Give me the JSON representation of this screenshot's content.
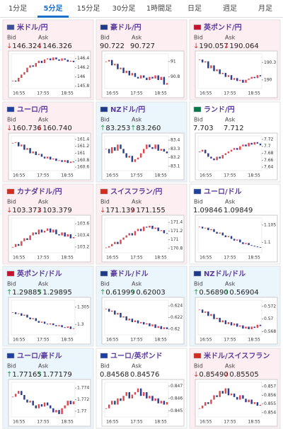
{
  "tabs": [
    "1分足",
    "5分足",
    "15分足",
    "30分足",
    "1時間足",
    "日足",
    "週足",
    "月足"
  ],
  "active_tab": 1,
  "labels": {
    "bid": "Bid",
    "ask": "Ask"
  },
  "xticks": [
    "16:55",
    "17:55",
    "18:55"
  ],
  "panels": [
    {
      "name": "米ドル/円",
      "flag": "#3c4f9a",
      "bg": "#fdeef1",
      "arrow": "↓",
      "arrow_color": "#d33",
      "bid": "146.324",
      "ask": "146.326",
      "chart": {
        "ylim": [
          145.75,
          146.5
        ],
        "yticks": [
          146.4,
          146.2,
          146,
          145.8
        ],
        "closes": [
          145.92,
          145.9,
          145.98,
          146.05,
          146.1,
          146.2,
          146.25,
          146.22,
          146.3,
          146.35,
          146.3,
          146.38,
          146.4,
          146.36,
          146.42,
          146.38,
          146.35,
          146.4,
          146.37,
          146.33,
          146.35,
          146.32
        ]
      }
    },
    {
      "name": "豪ドル/円",
      "flag": "#1f3a8a",
      "bg": "#fdeef1",
      "bid": "90.722",
      "ask": "90.727",
      "chart": {
        "ylim": [
          90.65,
          91.1
        ],
        "yticks": [
          91,
          90.8
        ],
        "closes": [
          91.0,
          91.02,
          90.95,
          90.97,
          90.9,
          90.92,
          90.85,
          90.88,
          90.82,
          90.85,
          90.8,
          90.78,
          90.82,
          90.79,
          90.76,
          90.8,
          90.78,
          90.82,
          90.76,
          90.8,
          90.7,
          90.72
        ]
      }
    },
    {
      "name": "英ポンド/円",
      "flag": "#c8102e",
      "bg": "#fdeef1",
      "arrow": "↓",
      "arrow_color": "#d33",
      "bid": "190.057",
      "ask": "190.064",
      "chart": {
        "ylim": [
          189.85,
          190.45
        ],
        "yticks": [
          190.3,
          190
        ],
        "closes": [
          190.35,
          190.3,
          190.32,
          190.2,
          190.25,
          190.15,
          190.18,
          190.1,
          190.12,
          190.05,
          190.08,
          190.0,
          190.03,
          189.98,
          190.0,
          189.95,
          190.0,
          190.02,
          190.05,
          190.03,
          190.08,
          190.06
        ]
      }
    },
    {
      "name": "ユーロ/円",
      "flag": "#1f3fa0",
      "bg": "#fdeef1",
      "arrow": "↓",
      "arrow_color": "#d33",
      "bid": "160.736",
      "ask": "160.740",
      "chart": {
        "ylim": [
          160.5,
          161.5
        ],
        "yticks": [
          161.4,
          161.2,
          161,
          160.8,
          160.6
        ],
        "closes": [
          161.3,
          161.32,
          161.2,
          161.25,
          161.1,
          161.15,
          161.0,
          161.05,
          160.95,
          160.98,
          160.9,
          160.85,
          160.9,
          160.82,
          160.85,
          160.78,
          160.8,
          160.75,
          160.8,
          160.72,
          160.76,
          160.74
        ]
      }
    },
    {
      "name": "NZドル/円",
      "flag": "#1f3a8a",
      "bg": "#eaf5fc",
      "arrow": "↑",
      "arrow_color": "#2a9d4b",
      "bid": "83.253",
      "ask": "83.260",
      "chart": {
        "ylim": [
          83.05,
          83.45
        ],
        "yticks": [
          83.4,
          83.3,
          83.2,
          83.1
        ],
        "closes": [
          83.3,
          83.25,
          83.32,
          83.28,
          83.35,
          83.3,
          83.25,
          83.2,
          83.22,
          83.15,
          83.18,
          83.2,
          83.25,
          83.3,
          83.35,
          83.32,
          83.3,
          83.35,
          83.28,
          83.3,
          83.27,
          83.25
        ]
      }
    },
    {
      "name": "ランド/円",
      "flag": "#007a4d",
      "bg": "#ffffff",
      "bid": "7.703",
      "ask": "7.712",
      "chart": {
        "ylim": [
          7.63,
          7.73
        ],
        "yticks": [
          7.72,
          7.7,
          7.68,
          7.66,
          7.64
        ],
        "closes": [
          7.685,
          7.69,
          7.68,
          7.67,
          7.665,
          7.66,
          7.67,
          7.665,
          7.675,
          7.68,
          7.685,
          7.69,
          7.695,
          7.69,
          7.7,
          7.705,
          7.7,
          7.71,
          7.705,
          7.712,
          7.708,
          7.703
        ]
      }
    },
    {
      "name": "カナダドル/円",
      "flag": "#d52b1e",
      "bg": "#fdeef1",
      "arrow": "↓",
      "arrow_color": "#d33",
      "bid": "103.373",
      "ask": "103.379",
      "chart": {
        "ylim": [
          103.1,
          103.7
        ],
        "yticks": [
          103.6,
          103.4,
          103.2
        ],
        "closes": [
          103.2,
          103.25,
          103.22,
          103.3,
          103.35,
          103.32,
          103.4,
          103.45,
          103.42,
          103.5,
          103.45,
          103.48,
          103.52,
          103.45,
          103.5,
          103.42,
          103.4,
          103.45,
          103.38,
          103.42,
          103.35,
          103.37
        ]
      }
    },
    {
      "name": "スイスフラン/円",
      "flag": "#d52b1e",
      "bg": "#fdeef1",
      "arrow": "↓",
      "arrow_color": "#d33",
      "bid": "171.139",
      "ask": "171.155",
      "chart": {
        "ylim": [
          170.7,
          171.5
        ],
        "yticks": [
          171.4,
          171.2,
          171,
          170.8
        ],
        "closes": [
          170.82,
          170.85,
          170.9,
          170.95,
          170.9,
          171.0,
          171.05,
          171.1,
          171.15,
          171.1,
          171.2,
          171.25,
          171.2,
          171.3,
          171.28,
          171.32,
          171.25,
          171.28,
          171.2,
          171.22,
          171.15,
          171.14
        ]
      }
    },
    {
      "name": "ユーロ/ドル",
      "flag": "#1f3fa0",
      "bg": "#ffffff",
      "bid": "1.09846",
      "ask": "1.09849",
      "chart": {
        "ylim": [
          1.097,
          1.107
        ],
        "yticks": [
          1.105,
          1.1
        ],
        "closes": [
          1.1045,
          1.104,
          1.1042,
          1.1035,
          1.1038,
          1.103,
          1.1025,
          1.1028,
          1.102,
          1.1015,
          1.1018,
          1.101,
          1.1005,
          1.1008,
          1.1,
          1.0995,
          1.0998,
          1.0992,
          1.099,
          1.0988,
          1.0986,
          1.0985
        ]
      }
    },
    {
      "name": "英ポンド/ドル",
      "flag": "#c8102e",
      "bg": "#eaf5fc",
      "arrow": "↑",
      "arrow_color": "#2a9d4b",
      "bid": "1.29885",
      "ask": "1.29895",
      "chart": {
        "ylim": [
          1.297,
          1.307
        ],
        "yticks": [
          1.305,
          1.3
        ],
        "closes": [
          1.3035,
          1.303,
          1.3032,
          1.3025,
          1.3028,
          1.302,
          1.3015,
          1.3018,
          1.301,
          1.3005,
          1.3008,
          1.3002,
          1.3,
          1.3003,
          1.2998,
          1.2995,
          1.2998,
          1.2992,
          1.299,
          1.2994,
          1.2987,
          1.2989
        ]
      }
    },
    {
      "name": "豪ドル/ドル",
      "flag": "#1f3a8a",
      "bg": "#eaf5fc",
      "arrow": "↑",
      "arrow_color": "#2a9d4b",
      "bid": "0.61999",
      "ask": "0.62003",
      "chart": {
        "ylim": [
          0.619,
          0.625
        ],
        "yticks": [
          0.624,
          0.622,
          0.62
        ],
        "closes": [
          0.6235,
          0.623,
          0.6232,
          0.6225,
          0.6228,
          0.622,
          0.6222,
          0.6215,
          0.6218,
          0.6212,
          0.6215,
          0.621,
          0.6212,
          0.6208,
          0.621,
          0.6205,
          0.6208,
          0.6202,
          0.6205,
          0.62,
          0.6203,
          0.62
        ]
      }
    },
    {
      "name": "NZドル/ドル",
      "flag": "#1f3a8a",
      "bg": "#eaf5fc",
      "arrow": "↑",
      "arrow_color": "#2a9d4b",
      "bid": "0.56890",
      "ask": "0.56904",
      "chart": {
        "ylim": [
          0.5675,
          0.573
        ],
        "yticks": [
          0.572,
          0.57,
          0.568
        ],
        "closes": [
          0.5715,
          0.571,
          0.5712,
          0.5705,
          0.5708,
          0.57,
          0.5702,
          0.5695,
          0.5698,
          0.5692,
          0.5695,
          0.569,
          0.5693,
          0.5688,
          0.569,
          0.5685,
          0.5688,
          0.5684,
          0.5688,
          0.5686,
          0.5691,
          0.5689
        ]
      }
    },
    {
      "name": "ユーロ/豪ドル",
      "flag": "#1f3fa0",
      "bg": "#eaf5fc",
      "arrow": "↑",
      "arrow_color": "#2a9d4b",
      "bid": "1.77165",
      "ask": "1.77179",
      "chart": {
        "ylim": [
          1.769,
          1.775
        ],
        "yticks": [
          1.774,
          1.772,
          1.77
        ],
        "closes": [
          1.7725,
          1.773,
          1.7735,
          1.7728,
          1.772,
          1.7715,
          1.7718,
          1.771,
          1.7705,
          1.7712,
          1.7708,
          1.7715,
          1.771,
          1.7705,
          1.7698,
          1.7702,
          1.7695,
          1.7705,
          1.771,
          1.7718,
          1.7712,
          1.7717
        ]
      }
    },
    {
      "name": "ユーロ/英ポンド",
      "flag": "#1f3fa0",
      "bg": "#ffffff",
      "bid": "0.84568",
      "ask": "0.84576",
      "chart": {
        "ylim": [
          0.8445,
          0.8473
        ],
        "yticks": [
          0.847,
          0.846,
          0.845
        ],
        "closes": [
          0.8452,
          0.8455,
          0.8458,
          0.8455,
          0.846,
          0.8458,
          0.8462,
          0.8465,
          0.846,
          0.8463,
          0.8465,
          0.8468,
          0.8462,
          0.8465,
          0.846,
          0.8462,
          0.8458,
          0.846,
          0.8456,
          0.8458,
          0.8455,
          0.8457
        ]
      }
    },
    {
      "name": "米ドル/スイスフラン",
      "flag": "#d52b1e",
      "bg": "#fdeef1",
      "arrow": "↓",
      "arrow_color": "#d33",
      "bid": "0.85490",
      "ask": "0.85505",
      "chart": {
        "ylim": [
          0.8535,
          0.8575
        ],
        "yticks": [
          0.857,
          0.856,
          0.855,
          0.854
        ],
        "closes": [
          0.8545,
          0.8548,
          0.8552,
          0.855,
          0.8555,
          0.856,
          0.8558,
          0.8565,
          0.8562,
          0.8568,
          0.856,
          0.8562,
          0.8558,
          0.8555,
          0.856,
          0.8556,
          0.8552,
          0.8555,
          0.855,
          0.8552,
          0.8548,
          0.8549
        ]
      }
    }
  ]
}
